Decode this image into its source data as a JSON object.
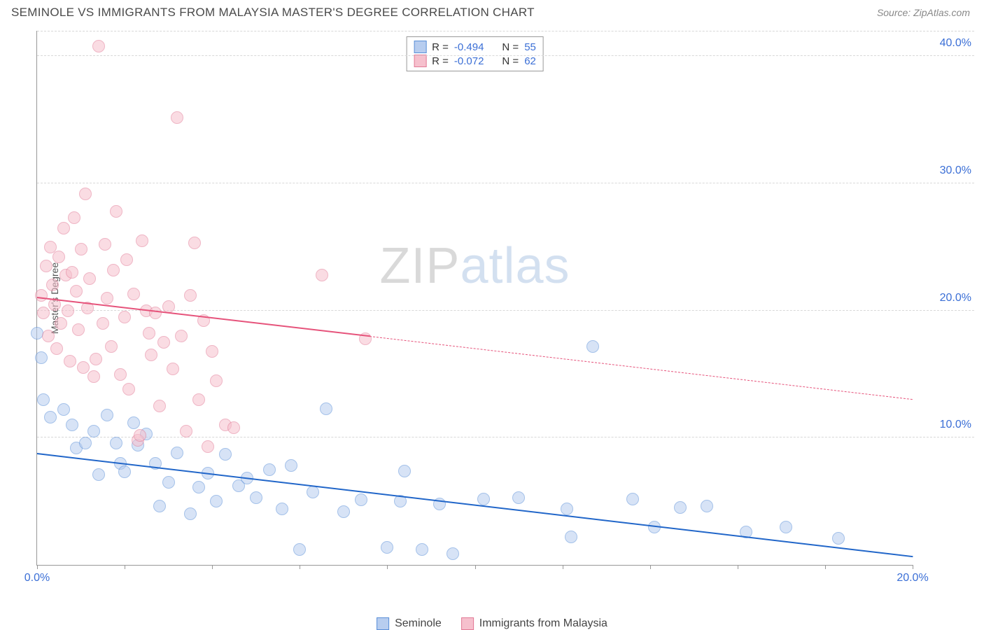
{
  "header": {
    "title": "SEMINOLE VS IMMIGRANTS FROM MALAYSIA MASTER'S DEGREE CORRELATION CHART",
    "source": "Source: ZipAtlas.com"
  },
  "watermark": {
    "part1": "ZIP",
    "part2": "atlas"
  },
  "chart": {
    "type": "scatter",
    "ylabel": "Master's Degree",
    "background_color": "#ffffff",
    "grid_color": "#d8d8d8",
    "axis_color": "#989898",
    "label_color": "#3b6fd6",
    "xlim": [
      0,
      20
    ],
    "ylim": [
      0,
      42
    ],
    "xticks": [
      0,
      2,
      4,
      6,
      8,
      10,
      12,
      14,
      16,
      18,
      20
    ],
    "xtick_labels": {
      "0": "0.0%",
      "20": "20.0%"
    },
    "yticks": [
      10,
      20,
      30,
      40
    ],
    "ytick_labels": {
      "10": "10.0%",
      "20": "20.0%",
      "30": "30.0%",
      "40": "40.0%"
    },
    "marker_radius": 9,
    "marker_opacity": 0.55,
    "series": [
      {
        "name": "Seminole",
        "color_fill": "#b7cdef",
        "color_stroke": "#5a8fd8",
        "line_color": "#2166c9",
        "r_value": "-0.494",
        "n_value": "55",
        "trend": {
          "x1": 0,
          "y1": 8.7,
          "x2": 20,
          "y2": 0.6,
          "solid_until_x": 20
        },
        "points": [
          [
            0.1,
            16.3
          ],
          [
            0.15,
            13.0
          ],
          [
            0.0,
            18.2
          ],
          [
            0.3,
            11.6
          ],
          [
            0.6,
            12.2
          ],
          [
            0.8,
            11.0
          ],
          [
            0.9,
            9.2
          ],
          [
            1.1,
            9.6
          ],
          [
            1.3,
            10.5
          ],
          [
            1.4,
            7.1
          ],
          [
            1.6,
            11.8
          ],
          [
            1.8,
            9.6
          ],
          [
            1.9,
            8.0
          ],
          [
            2.0,
            7.3
          ],
          [
            2.2,
            11.2
          ],
          [
            2.3,
            9.4
          ],
          [
            2.5,
            10.3
          ],
          [
            2.7,
            8.0
          ],
          [
            2.8,
            4.6
          ],
          [
            3.0,
            6.5
          ],
          [
            3.2,
            8.8
          ],
          [
            3.5,
            4.0
          ],
          [
            3.7,
            6.1
          ],
          [
            3.9,
            7.2
          ],
          [
            4.1,
            5.0
          ],
          [
            4.3,
            8.7
          ],
          [
            4.6,
            6.2
          ],
          [
            4.8,
            6.8
          ],
          [
            5.0,
            5.3
          ],
          [
            5.3,
            7.5
          ],
          [
            5.6,
            4.4
          ],
          [
            5.8,
            7.8
          ],
          [
            6.0,
            1.2
          ],
          [
            6.3,
            5.7
          ],
          [
            6.6,
            12.3
          ],
          [
            7.0,
            4.2
          ],
          [
            7.4,
            5.1
          ],
          [
            8.0,
            1.4
          ],
          [
            8.3,
            5.0
          ],
          [
            8.4,
            7.4
          ],
          [
            8.8,
            1.2
          ],
          [
            9.2,
            4.8
          ],
          [
            9.5,
            0.9
          ],
          [
            10.2,
            5.2
          ],
          [
            11.0,
            5.3
          ],
          [
            12.1,
            4.4
          ],
          [
            12.2,
            2.2
          ],
          [
            12.7,
            17.2
          ],
          [
            13.6,
            5.2
          ],
          [
            14.1,
            3.0
          ],
          [
            14.7,
            4.5
          ],
          [
            15.3,
            4.6
          ],
          [
            16.2,
            2.6
          ],
          [
            17.1,
            3.0
          ],
          [
            18.3,
            2.1
          ]
        ]
      },
      {
        "name": "Immigrants from Malaysia",
        "color_fill": "#f6c0cd",
        "color_stroke": "#e27a96",
        "line_color": "#e6537b",
        "r_value": "-0.072",
        "n_value": "62",
        "trend": {
          "x1": 0,
          "y1": 21.0,
          "x2": 20,
          "y2": 13.0,
          "solid_until_x": 7.6
        },
        "points": [
          [
            0.1,
            21.2
          ],
          [
            0.15,
            19.8
          ],
          [
            0.2,
            23.5
          ],
          [
            0.25,
            18.0
          ],
          [
            0.3,
            25.0
          ],
          [
            0.35,
            22.0
          ],
          [
            0.4,
            20.5
          ],
          [
            0.45,
            17.0
          ],
          [
            0.5,
            24.2
          ],
          [
            0.55,
            19.0
          ],
          [
            0.6,
            26.5
          ],
          [
            0.65,
            22.8
          ],
          [
            0.7,
            20.0
          ],
          [
            0.75,
            16.0
          ],
          [
            0.8,
            23.0
          ],
          [
            0.85,
            27.3
          ],
          [
            0.9,
            21.5
          ],
          [
            0.95,
            18.5
          ],
          [
            1.0,
            24.8
          ],
          [
            1.05,
            15.5
          ],
          [
            1.1,
            29.2
          ],
          [
            1.15,
            20.2
          ],
          [
            1.2,
            22.5
          ],
          [
            1.3,
            14.8
          ],
          [
            1.35,
            16.2
          ],
          [
            1.4,
            40.8
          ],
          [
            1.5,
            19.0
          ],
          [
            1.55,
            25.2
          ],
          [
            1.6,
            21.0
          ],
          [
            1.7,
            17.2
          ],
          [
            1.75,
            23.2
          ],
          [
            1.8,
            27.8
          ],
          [
            1.9,
            15.0
          ],
          [
            2.0,
            19.5
          ],
          [
            2.05,
            24.0
          ],
          [
            2.1,
            13.8
          ],
          [
            2.2,
            21.3
          ],
          [
            2.3,
            9.8
          ],
          [
            2.35,
            10.2
          ],
          [
            2.4,
            25.5
          ],
          [
            2.5,
            20.0
          ],
          [
            2.55,
            18.2
          ],
          [
            2.6,
            16.5
          ],
          [
            2.7,
            19.8
          ],
          [
            2.8,
            12.5
          ],
          [
            2.9,
            17.5
          ],
          [
            3.0,
            20.3
          ],
          [
            3.1,
            15.4
          ],
          [
            3.2,
            35.2
          ],
          [
            3.3,
            18.0
          ],
          [
            3.4,
            10.5
          ],
          [
            3.5,
            21.2
          ],
          [
            3.6,
            25.3
          ],
          [
            3.7,
            13.0
          ],
          [
            3.8,
            19.2
          ],
          [
            3.9,
            9.3
          ],
          [
            4.0,
            16.8
          ],
          [
            4.1,
            14.5
          ],
          [
            4.3,
            11.0
          ],
          [
            4.5,
            10.8
          ],
          [
            6.5,
            22.8
          ],
          [
            7.5,
            17.8
          ]
        ]
      }
    ],
    "legend": {
      "items": [
        {
          "label": "Seminole",
          "fill": "#b7cdef",
          "stroke": "#5a8fd8"
        },
        {
          "label": "Immigrants from Malaysia",
          "fill": "#f6c0cd",
          "stroke": "#e27a96"
        }
      ]
    },
    "stats_labels": {
      "r": "R =",
      "n": "N ="
    }
  }
}
